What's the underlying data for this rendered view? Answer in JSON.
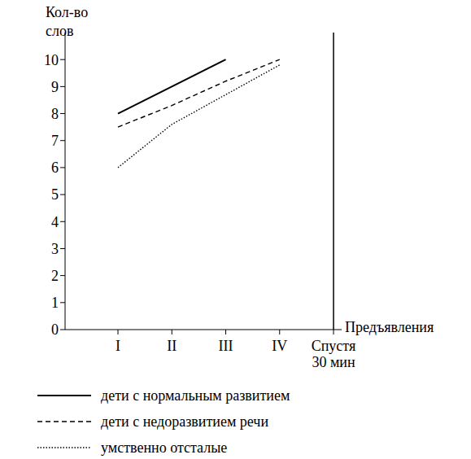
{
  "chart_data": {
    "type": "line",
    "x_label": "Предъявления",
    "y_label": "Кол-во слов",
    "categories": [
      "I",
      "II",
      "III",
      "IV",
      "Спустя 30 мин"
    ],
    "series": [
      {
        "name": "дети с нормальным развитием",
        "color": "#000000",
        "line_style": "solid",
        "values": [
          8,
          9,
          10,
          null,
          null
        ]
      },
      {
        "name": "дети с недоразвитием речи",
        "color": "#000000",
        "line_style": "dashed",
        "values": [
          7.5,
          8.3,
          9.2,
          10,
          null
        ]
      },
      {
        "name": "умственно отсталые",
        "color": "#000000",
        "line_style": "dotted",
        "values": [
          6,
          7.6,
          8.7,
          9.8,
          null
        ]
      }
    ],
    "ylim": [
      0,
      11
    ],
    "yticks": [
      0,
      1,
      2,
      3,
      4,
      5,
      6,
      7,
      8,
      9,
      10
    ],
    "legend": "bottom"
  }
}
